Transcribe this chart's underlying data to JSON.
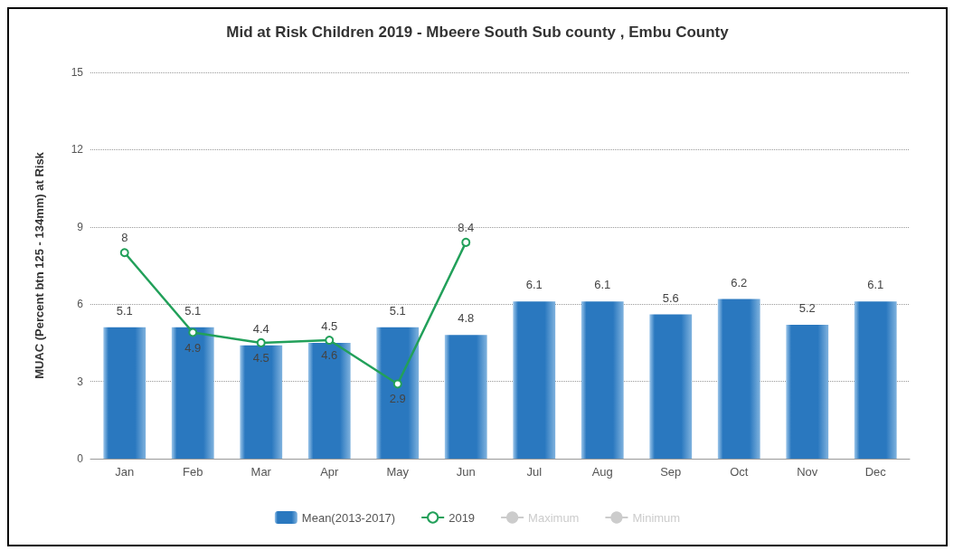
{
  "chart_data": {
    "type": "bar",
    "title": "Mid at Risk Children 2019 - Mbeere South Sub county , Embu County",
    "ylabel": "MUAC (Percent btn 125 - 134mm) at Risk",
    "categories": [
      "Jan",
      "Feb",
      "Mar",
      "Apr",
      "May",
      "Jun",
      "Jul",
      "Aug",
      "Sep",
      "Oct",
      "Nov",
      "Dec"
    ],
    "series": [
      {
        "name": "Mean(2013-2017)",
        "color": "#2a78bf",
        "values": [
          5.1,
          5.1,
          4.4,
          4.5,
          5.1,
          4.8,
          6.1,
          6.1,
          5.6,
          6.2,
          5.2,
          6.1
        ]
      },
      {
        "name": "2019",
        "type": "line",
        "color": "#22a05a",
        "values": [
          8,
          4.9,
          4.5,
          4.6,
          2.9,
          8.4,
          null,
          null,
          null,
          null,
          null,
          null
        ]
      },
      {
        "name": "Maximum",
        "type": "line",
        "color": "#cccccc",
        "values": [
          null,
          null,
          null,
          null,
          null,
          null,
          null,
          null,
          null,
          null,
          null,
          null
        ]
      },
      {
        "name": "Minimum",
        "type": "line",
        "color": "#cccccc",
        "values": [
          null,
          null,
          null,
          null,
          null,
          null,
          null,
          null,
          null,
          null,
          null,
          null
        ]
      }
    ],
    "ylim": [
      0,
      15
    ],
    "yticks": [
      0,
      3,
      6,
      9,
      12,
      15
    ],
    "grid": "y",
    "legend": "bottom",
    "data_labels": true,
    "marker": "circle",
    "line_style": "solid"
  }
}
